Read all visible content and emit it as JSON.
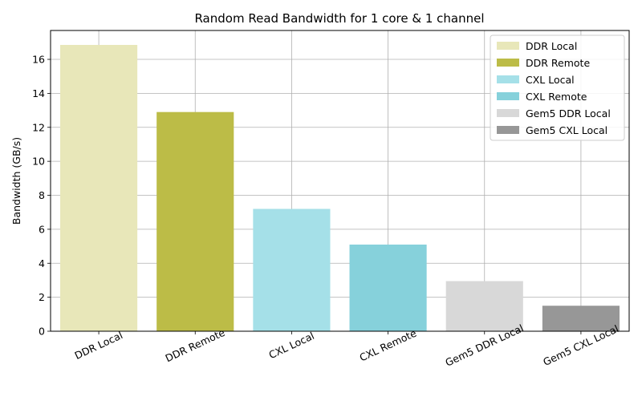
{
  "chart_data": {
    "type": "bar",
    "title": "Random Read Bandwidth for 1 core & 1 channel",
    "xlabel": "",
    "ylabel": "Bandwidth (GB/s)",
    "ylim": [
      0,
      17.7
    ],
    "yticks": [
      0,
      2,
      4,
      6,
      8,
      10,
      12,
      14,
      16
    ],
    "grid": true,
    "legend_position": "top-right",
    "categories": [
      "DDR Local",
      "DDR Remote",
      "CXL Local",
      "CXL Remote",
      "Gem5 DDR Local",
      "Gem5 CXL Local"
    ],
    "values": [
      16.85,
      12.9,
      7.2,
      5.1,
      2.95,
      1.5
    ],
    "colors": [
      "#e8e7b9",
      "#bcbc47",
      "#a5e0e8",
      "#86d1db",
      "#d8d8d8",
      "#979797"
    ],
    "legend": [
      "DDR Local",
      "DDR Remote",
      "CXL Local",
      "CXL Remote",
      "Gem5 DDR Local",
      "Gem5 CXL Local"
    ]
  }
}
